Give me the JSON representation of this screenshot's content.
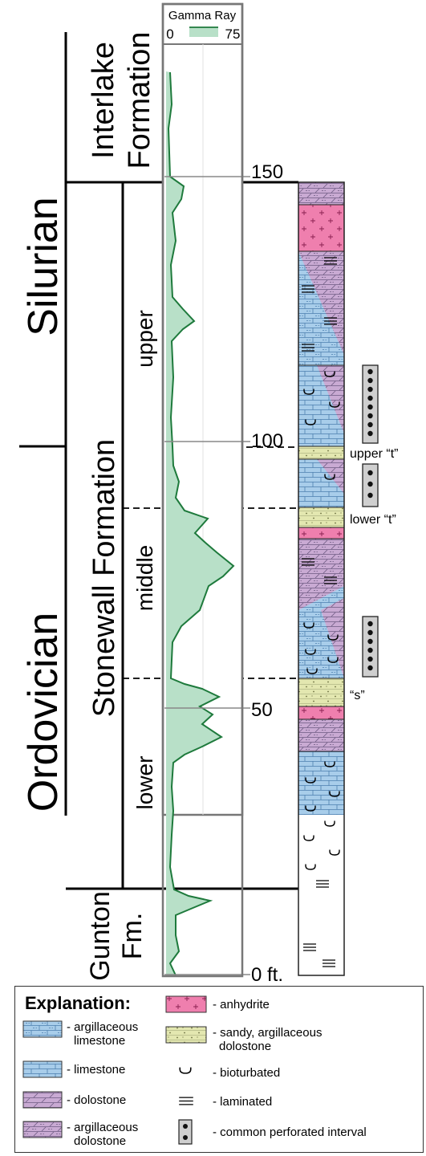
{
  "periods": {
    "silurian": "Silurian",
    "ordovician": "Ordovician"
  },
  "formations": {
    "interlake_1": "Interlake",
    "interlake_2": "Formation",
    "stonewall": "Stonewall Formation",
    "gunton_1": "Gunton",
    "gunton_2": "Fm."
  },
  "members": {
    "upper": "upper",
    "middle": "middle",
    "lower": "lower"
  },
  "log": {
    "title": "Gamma Ray",
    "scale_min": "0",
    "scale_max": "75",
    "depth_labels": [
      "150",
      "100",
      "50",
      "0 ft."
    ]
  },
  "markers": {
    "upper_t": "upper “t”",
    "lower_t": "lower “t”",
    "s": "“s”"
  },
  "legend": {
    "title": "Explanation:",
    "items": [
      "- argillaceous",
      "limestone",
      "- limestone",
      "- dolostone",
      "- argillaceous",
      "dolostone",
      "- anhydrite",
      "- sandy, argillaceous",
      "dolostone",
      "- bioturbated",
      "- laminated",
      "- common perforated interval"
    ]
  },
  "colors": {
    "gamma_fill": "#b8e0c8",
    "gamma_line": "#1e7a3c",
    "limestone": "#a8cdea",
    "dolostone": "#c9aad3",
    "anhydrite": "#ef7fae",
    "sandy": "#e3e7b0"
  }
}
